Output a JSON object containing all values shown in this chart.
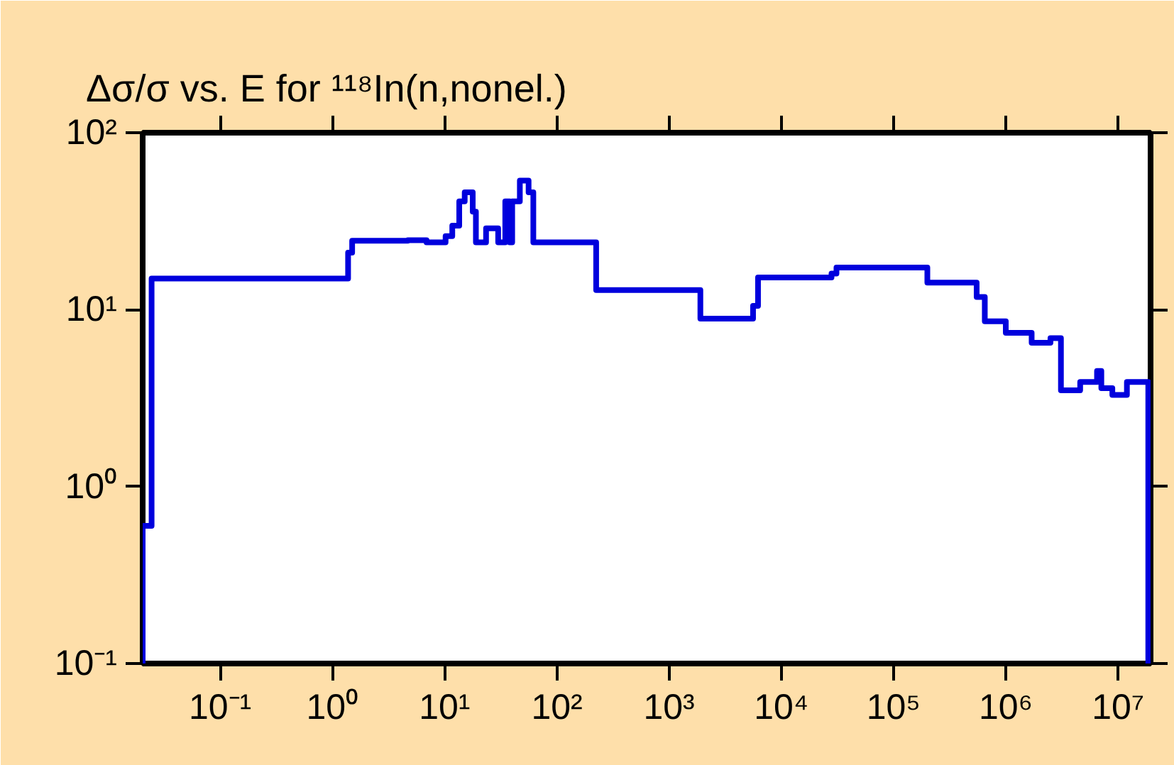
{
  "chart_data": {
    "type": "step",
    "title": "Δσ/σ vs. E for ¹¹⁸In(n,nonel.)",
    "log": "xy",
    "grid": false,
    "xlim": [
      0.0204,
      19500000
    ],
    "ylim": [
      0.1,
      100
    ],
    "xticks": [
      {
        "value": 0.1,
        "label": "10⁻¹"
      },
      {
        "value": 1,
        "label": "10⁰"
      },
      {
        "value": 10,
        "label": "10¹"
      },
      {
        "value": 100,
        "label": "10²"
      },
      {
        "value": 1000,
        "label": "10³"
      },
      {
        "value": 10000,
        "label": "10⁴"
      },
      {
        "value": 100000,
        "label": "10⁵"
      },
      {
        "value": 1000000,
        "label": "10⁶"
      },
      {
        "value": 10000000,
        "label": "10⁷"
      }
    ],
    "yticks": [
      {
        "value": 0.1,
        "label": "10⁻¹"
      },
      {
        "value": 1,
        "label": "10⁰"
      },
      {
        "value": 10,
        "label": "10¹"
      },
      {
        "value": 100,
        "label": "10²"
      }
    ],
    "series": [
      {
        "color": "#0000dd",
        "x": [
          0.0204,
          0.0204,
          0.0245,
          1.38,
          1.5,
          4.7,
          6.9,
          10.2,
          11.7,
          13.5,
          15.1,
          17.8,
          19,
          23.4,
          30,
          34.7,
          38,
          40,
          46.8,
          56,
          61.7,
          224,
          1900,
          5600,
          6200,
          28000,
          31000,
          200000,
          550000,
          650000,
          1000000,
          1700000,
          2500000,
          3100000,
          4600000,
          6500000,
          7100000,
          8900000,
          12000000,
          15000000,
          18600000,
          19500000
        ],
        "values": [
          0.1,
          0.6,
          15,
          21,
          24.5,
          24.7,
          24,
          26,
          29.8,
          40.9,
          46,
          35.8,
          24,
          28.8,
          24,
          40.9,
          24,
          40.9,
          53.6,
          46,
          24,
          12.9,
          8.9,
          10.5,
          15.2,
          16,
          17.3,
          14.2,
          11.8,
          8.6,
          7.4,
          6.5,
          6.9,
          3.5,
          3.9,
          4.5,
          3.6,
          3.3,
          3.9,
          3.9,
          0.1,
          0.1
        ]
      }
    ]
  }
}
